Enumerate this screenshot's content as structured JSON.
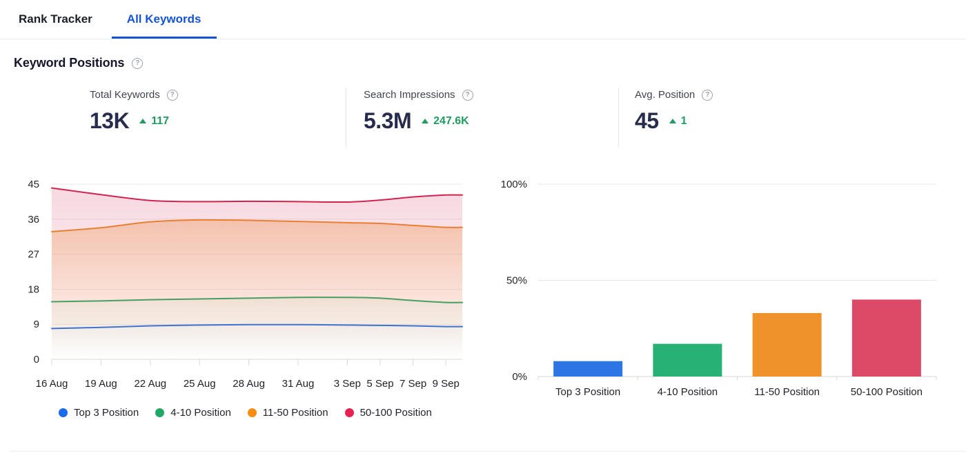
{
  "tabs": [
    {
      "label": "Rank Tracker",
      "active": false
    },
    {
      "label": "All Keywords",
      "active": true
    }
  ],
  "heading": {
    "title": "Keyword Positions"
  },
  "icons": {
    "help": "?"
  },
  "stats": {
    "items": [
      {
        "label": "Total Keywords",
        "value": "13K",
        "delta": "117",
        "direction": "up"
      },
      {
        "label": "Search Impressions",
        "value": "5.3M",
        "delta": "247.6K",
        "direction": "up"
      },
      {
        "label": "Avg. Position",
        "value": "45",
        "delta": "1",
        "direction": "up"
      }
    ]
  },
  "colors": {
    "accent_blue": "#1453d6",
    "delta_green": "#1f9c5e",
    "value_navy": "#272c4f",
    "gridline": "#e9e9eb",
    "axis_line": "#d4d7db"
  },
  "legend": {
    "items": [
      {
        "label": "Top 3 Position",
        "color": "#1a6beb"
      },
      {
        "label": "4-10 Position",
        "color": "#21a768"
      },
      {
        "label": "11-50 Position",
        "color": "#f78d13"
      },
      {
        "label": "50-100 Position",
        "color": "#e52350"
      }
    ]
  },
  "chart_data": [
    {
      "type": "area",
      "title": "Keyword position trend by range",
      "x_labels": [
        "16 Aug",
        "19 Aug",
        "22 Aug",
        "25 Aug",
        "28 Aug",
        "31 Aug",
        "3 Sep",
        "5 Sep",
        "7 Sep",
        "9 Sep"
      ],
      "x_days": [
        0,
        3,
        6,
        9,
        12,
        15,
        18,
        20,
        22,
        24
      ],
      "x_max_day": 25,
      "ylim": [
        0,
        45
      ],
      "y_ticks": [
        0,
        9,
        18,
        27,
        36,
        45
      ],
      "grid": true,
      "legend_position": "bottom",
      "series": [
        {
          "name": "Top 3 Position",
          "color": "#2b72e2",
          "fill_alpha": 0.12,
          "values": [
            7.9,
            8.2,
            8.6,
            8.8,
            8.9,
            8.9,
            8.8,
            8.7,
            8.6,
            8.4
          ]
        },
        {
          "name": "4-10 Position",
          "color": "#25a96b",
          "fill_alpha": 0.15,
          "values": [
            14.8,
            15.0,
            15.3,
            15.5,
            15.7,
            15.9,
            15.9,
            15.7,
            15.1,
            14.6
          ]
        },
        {
          "name": "11-50 Position",
          "color": "#ee8d2c",
          "fill_alpha": 0.38,
          "values": [
            32.8,
            33.8,
            35.3,
            35.8,
            35.7,
            35.4,
            35.1,
            34.9,
            34.4,
            33.9
          ]
        },
        {
          "name": "50-100 Position",
          "color": "#d2234f",
          "fill_alpha": 0.18,
          "values": [
            44.0,
            42.3,
            40.8,
            40.5,
            40.6,
            40.5,
            40.4,
            40.9,
            41.7,
            42.2
          ]
        }
      ]
    },
    {
      "type": "bar",
      "title": "Share of keywords by position range",
      "categories": [
        "Top 3 Position",
        "4-10 Position",
        "11-50 Position",
        "50-100 Position"
      ],
      "values": [
        8,
        17,
        33,
        40
      ],
      "colors": [
        "#2e75e4",
        "#28b174",
        "#f0922a",
        "#dc4a68"
      ],
      "ylim": [
        0,
        100
      ],
      "y_ticks": [
        {
          "v": 0,
          "label": "0%"
        },
        {
          "v": 50,
          "label": "50%"
        },
        {
          "v": 100,
          "label": "100%"
        }
      ],
      "grid": true
    }
  ]
}
